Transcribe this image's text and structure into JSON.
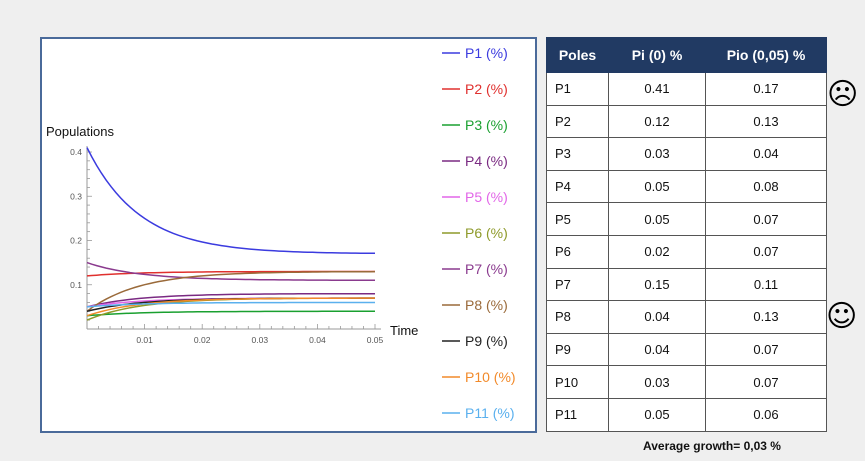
{
  "chart_data": {
    "type": "line",
    "ylabel": "Populations",
    "xlabel": "Time",
    "xlim": [
      0,
      0.05
    ],
    "ylim": [
      0,
      0.4
    ],
    "x_ticks": [
      "0.01",
      "0.02",
      "0.03",
      "0.04",
      "0.05"
    ],
    "y_ticks": [
      "0.1",
      "0.2",
      "0.3",
      "0.4"
    ],
    "grid": false,
    "legend_position": "right",
    "series": [
      {
        "name": "P1 (%)",
        "color": "#3b3bdf",
        "start": 0.41,
        "end": 0.17
      },
      {
        "name": "P2 (%)",
        "color": "#e0302e",
        "start": 0.12,
        "end": 0.13
      },
      {
        "name": "P3 (%)",
        "color": "#1aa030",
        "start": 0.03,
        "end": 0.04
      },
      {
        "name": "P4 (%)",
        "color": "#7a2a82",
        "start": 0.05,
        "end": 0.08
      },
      {
        "name": "P5 (%)",
        "color": "#e266e8",
        "start": 0.05,
        "end": 0.07
      },
      {
        "name": "P6 (%)",
        "color": "#8e9a2a",
        "start": 0.02,
        "end": 0.07
      },
      {
        "name": "P7 (%)",
        "color": "#8a3a8e",
        "start": 0.15,
        "end": 0.11
      },
      {
        "name": "P8 (%)",
        "color": "#9a6a3a",
        "start": 0.04,
        "end": 0.13
      },
      {
        "name": "P9 (%)",
        "color": "#222222",
        "start": 0.04,
        "end": 0.07
      },
      {
        "name": "P10 (%)",
        "color": "#f28a2a",
        "start": 0.03,
        "end": 0.07
      },
      {
        "name": "P11 (%)",
        "color": "#5ab0ee",
        "start": 0.05,
        "end": 0.06
      }
    ]
  },
  "table": {
    "headers": [
      "Poles",
      "Pi (0) %",
      "Pio (0,05) %"
    ],
    "rows": [
      [
        "P1",
        "0.41",
        "0.17"
      ],
      [
        "P2",
        "0.12",
        "0.13"
      ],
      [
        "P3",
        "0.03",
        "0.04"
      ],
      [
        "P4",
        "0.05",
        "0.08"
      ],
      [
        "P5",
        "0.05",
        "0.07"
      ],
      [
        "P6",
        "0.02",
        "0.07"
      ],
      [
        "P7",
        "0.15",
        "0.11"
      ],
      [
        "P8",
        "0.04",
        "0.13"
      ],
      [
        "P9",
        "0.04",
        "0.07"
      ],
      [
        "P10",
        "0.03",
        "0.07"
      ],
      [
        "P11",
        "0.05",
        "0.06"
      ]
    ]
  },
  "faces": {
    "sad": "☹",
    "happy": "☺"
  },
  "footer": {
    "average_growth": "Average growth= 0,03 %"
  }
}
